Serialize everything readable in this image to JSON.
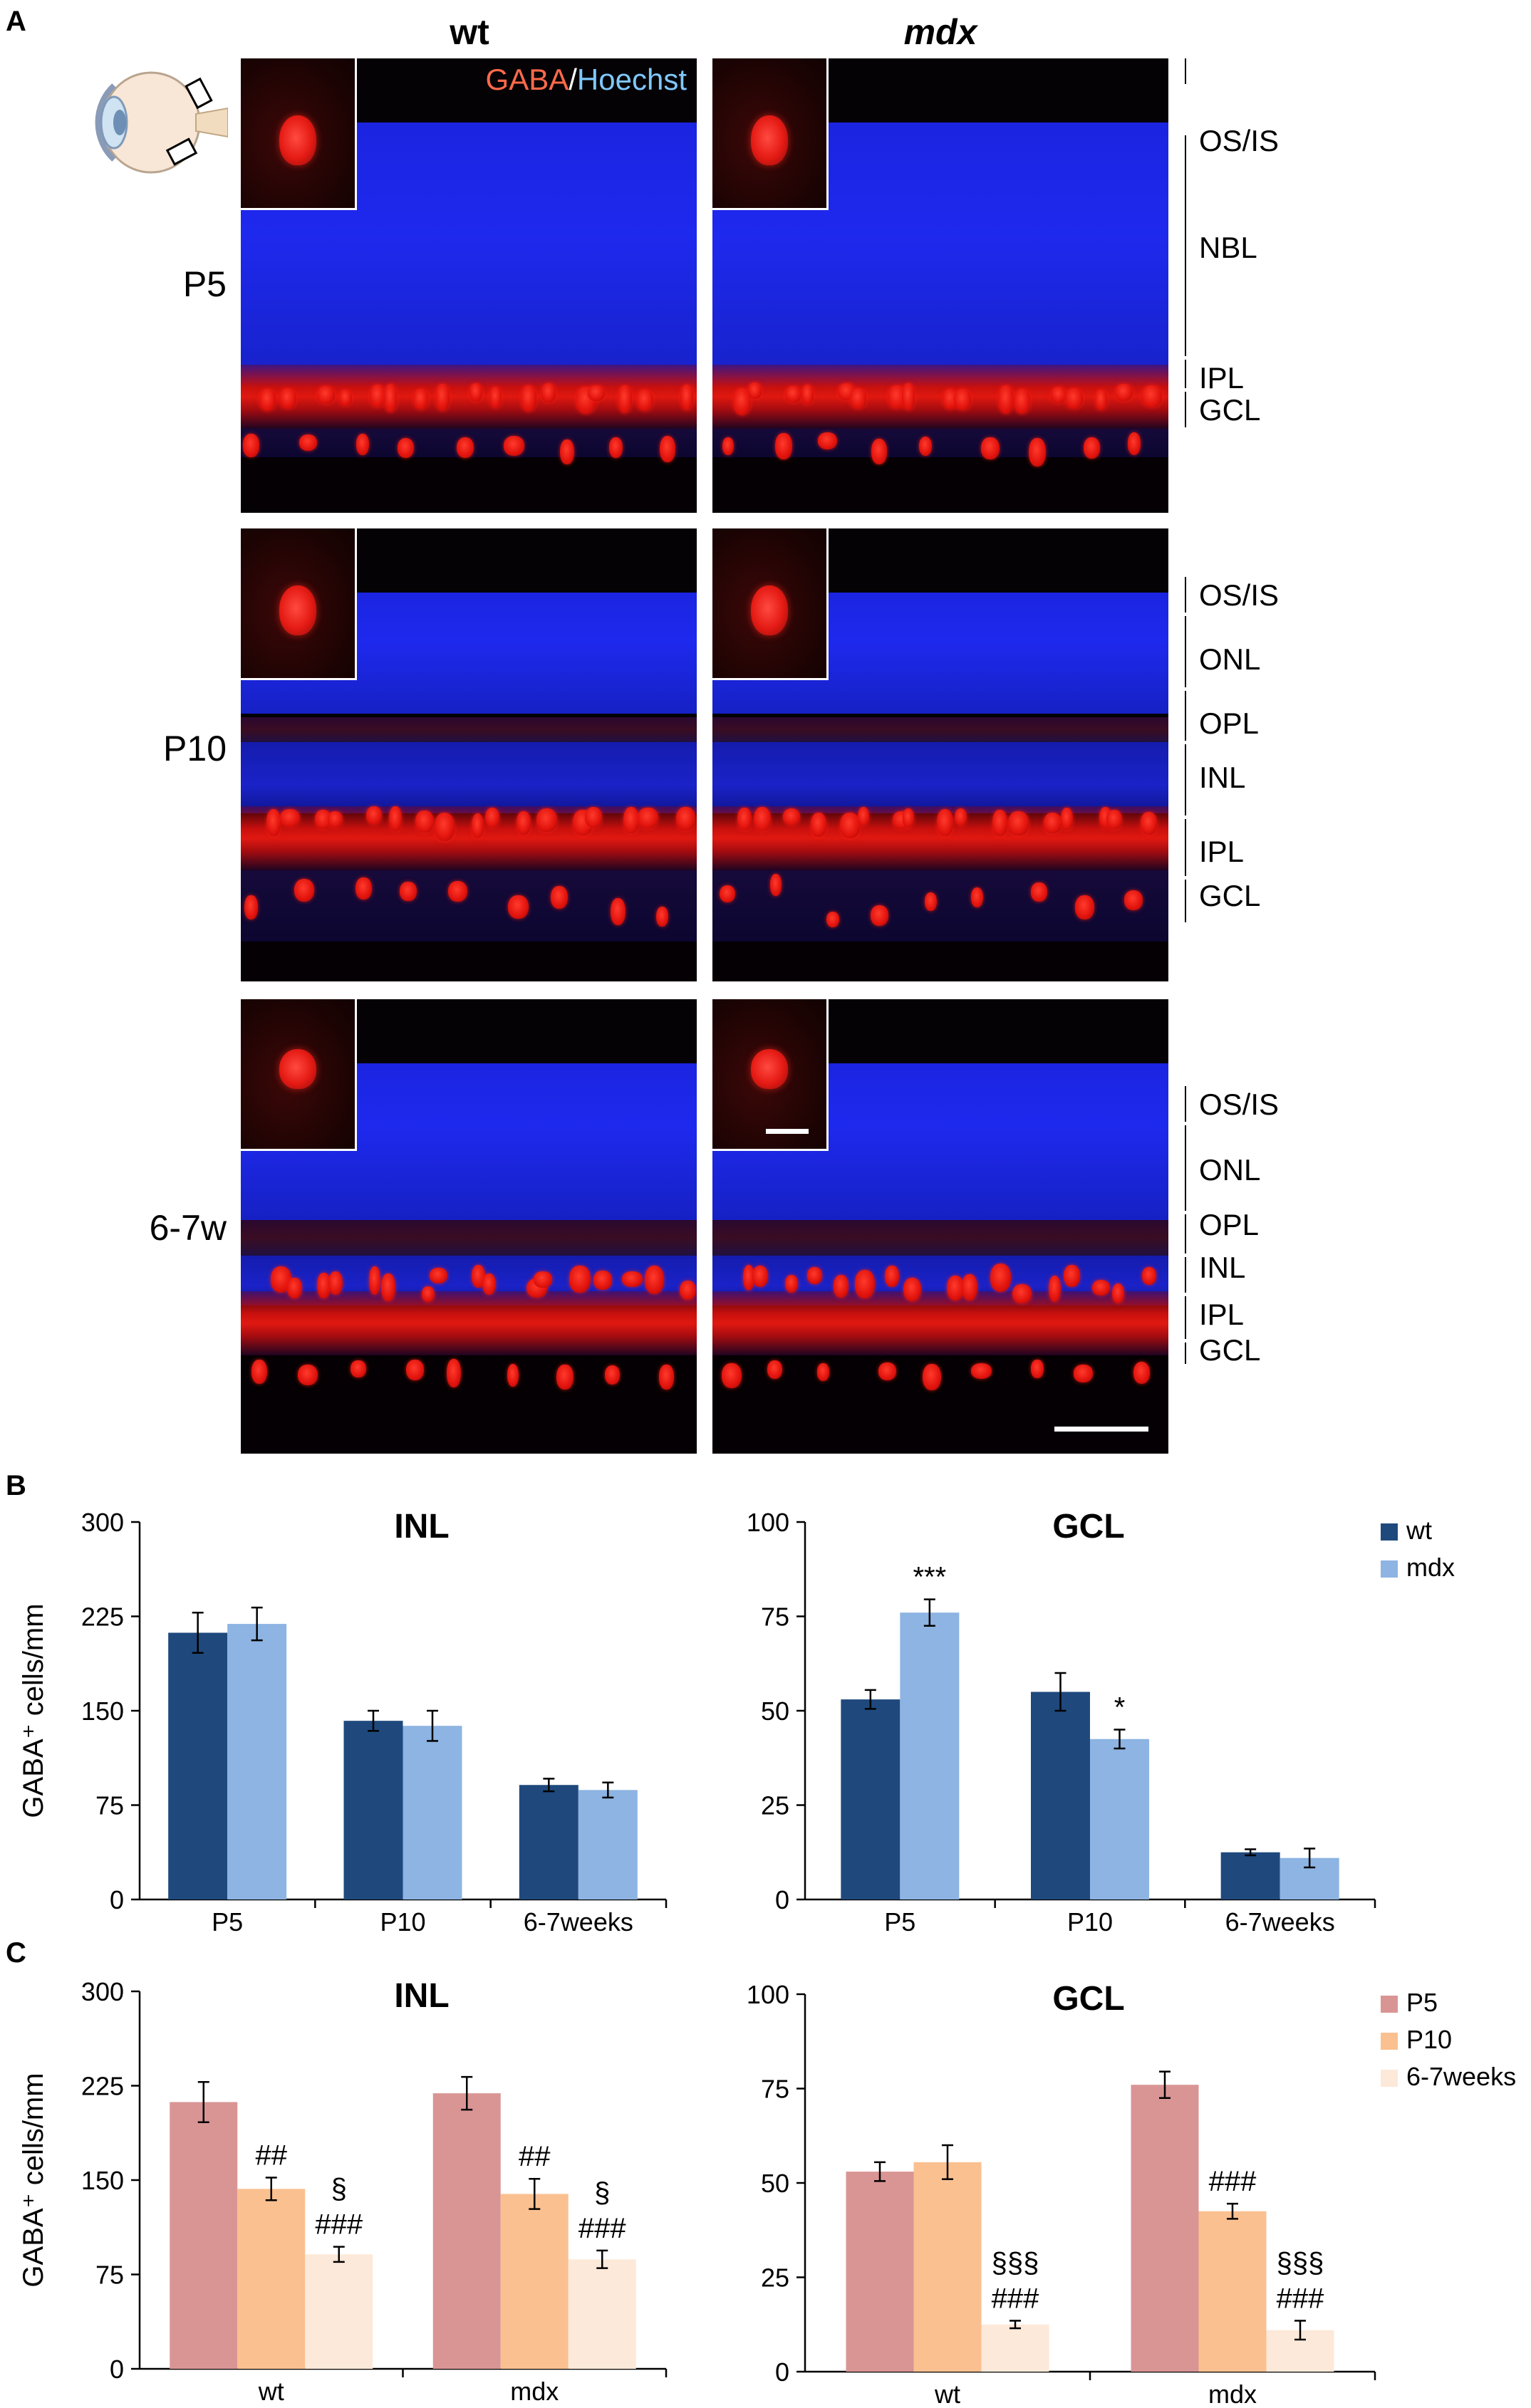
{
  "panels": {
    "a": "A",
    "b": "B",
    "c": "C"
  },
  "columns": {
    "wt": "wt",
    "mdx": "mdx"
  },
  "rows": [
    "P5",
    "P10",
    "6-7w"
  ],
  "stain": {
    "gaba": "GABA",
    "sep": "/",
    "hoechst": "Hoechst"
  },
  "layers": {
    "p5": [
      "OS/IS",
      "NBL",
      "IPL",
      "GCL"
    ],
    "p10": [
      "OS/IS",
      "ONL",
      "OPL",
      "INL",
      "IPL",
      "GCL"
    ],
    "w67": [
      "OS/IS",
      "ONL",
      "OPL",
      "INL",
      "IPL",
      "GCL"
    ]
  },
  "colors": {
    "wt": "#1f497d",
    "mdx": "#8db4e2",
    "p5": "#d99594",
    "p10": "#fac090",
    "w67": "#fde9d9",
    "retina_blue": "#1a22d8",
    "gaba_red": "#ff1a10"
  },
  "chart_data": [
    {
      "type": "bar",
      "title": "INL",
      "ylabel": "GABA⁺ cells/mm",
      "ylim": [
        0,
        300
      ],
      "yticks": [
        0,
        75,
        150,
        225,
        300
      ],
      "categories": [
        "P5",
        "P10",
        "6-7weeks"
      ],
      "series": [
        {
          "name": "wt",
          "values": [
            212,
            142,
            91
          ],
          "errors": [
            16,
            8,
            5
          ]
        },
        {
          "name": "mdx",
          "values": [
            219,
            138,
            87
          ],
          "errors": [
            13,
            12,
            6
          ]
        }
      ],
      "annotations": []
    },
    {
      "type": "bar",
      "title": "GCL",
      "ylabel": "",
      "ylim": [
        0,
        100
      ],
      "yticks": [
        0,
        25,
        50,
        75,
        100
      ],
      "categories": [
        "P5",
        "P10",
        "6-7weeks"
      ],
      "series": [
        {
          "name": "wt",
          "values": [
            53,
            55,
            12.5
          ],
          "errors": [
            2.5,
            5,
            0.8
          ]
        },
        {
          "name": "mdx",
          "values": [
            76,
            42.5,
            11
          ],
          "errors": [
            3.5,
            2.5,
            2.5
          ]
        }
      ],
      "annotations": [
        {
          "category": 0,
          "series": 1,
          "text": "***"
        },
        {
          "category": 1,
          "series": 1,
          "text": "*"
        }
      ],
      "legend": "right"
    },
    {
      "type": "bar",
      "title": "INL",
      "ylabel": "GABA⁺ cells/mm",
      "ylim": [
        0,
        300
      ],
      "yticks": [
        0,
        75,
        150,
        225,
        300
      ],
      "categories": [
        "wt",
        "mdx"
      ],
      "series": [
        {
          "name": "P5",
          "values": [
            212,
            219
          ],
          "errors": [
            16,
            13
          ]
        },
        {
          "name": "P10",
          "values": [
            143,
            139
          ],
          "errors": [
            9,
            12
          ]
        },
        {
          "name": "6-7weeks",
          "values": [
            91,
            87
          ],
          "errors": [
            6,
            7
          ]
        }
      ],
      "annotations": [
        {
          "category": 0,
          "series": 1,
          "lines": [
            "##"
          ]
        },
        {
          "category": 0,
          "series": 2,
          "lines": [
            "§",
            "###"
          ]
        },
        {
          "category": 1,
          "series": 1,
          "lines": [
            "##"
          ]
        },
        {
          "category": 1,
          "series": 2,
          "lines": [
            "§",
            "###"
          ]
        }
      ]
    },
    {
      "type": "bar",
      "title": "GCL",
      "ylabel": "",
      "ylim": [
        0,
        100
      ],
      "yticks": [
        0,
        25,
        50,
        75,
        100
      ],
      "categories": [
        "wt",
        "mdx"
      ],
      "series": [
        {
          "name": "P5",
          "values": [
            53,
            76
          ],
          "errors": [
            2.5,
            3.5
          ]
        },
        {
          "name": "P10",
          "values": [
            55.5,
            42.5
          ],
          "errors": [
            4.5,
            2
          ]
        },
        {
          "name": "6-7weeks",
          "values": [
            12.5,
            11
          ],
          "errors": [
            1,
            2.5
          ]
        }
      ],
      "annotations": [
        {
          "category": 0,
          "series": 2,
          "lines": [
            "§§§",
            "###"
          ]
        },
        {
          "category": 1,
          "series": 1,
          "lines": [
            "###"
          ]
        },
        {
          "category": 1,
          "series": 2,
          "lines": [
            "§§§",
            "###"
          ]
        }
      ],
      "legend": "right"
    }
  ]
}
